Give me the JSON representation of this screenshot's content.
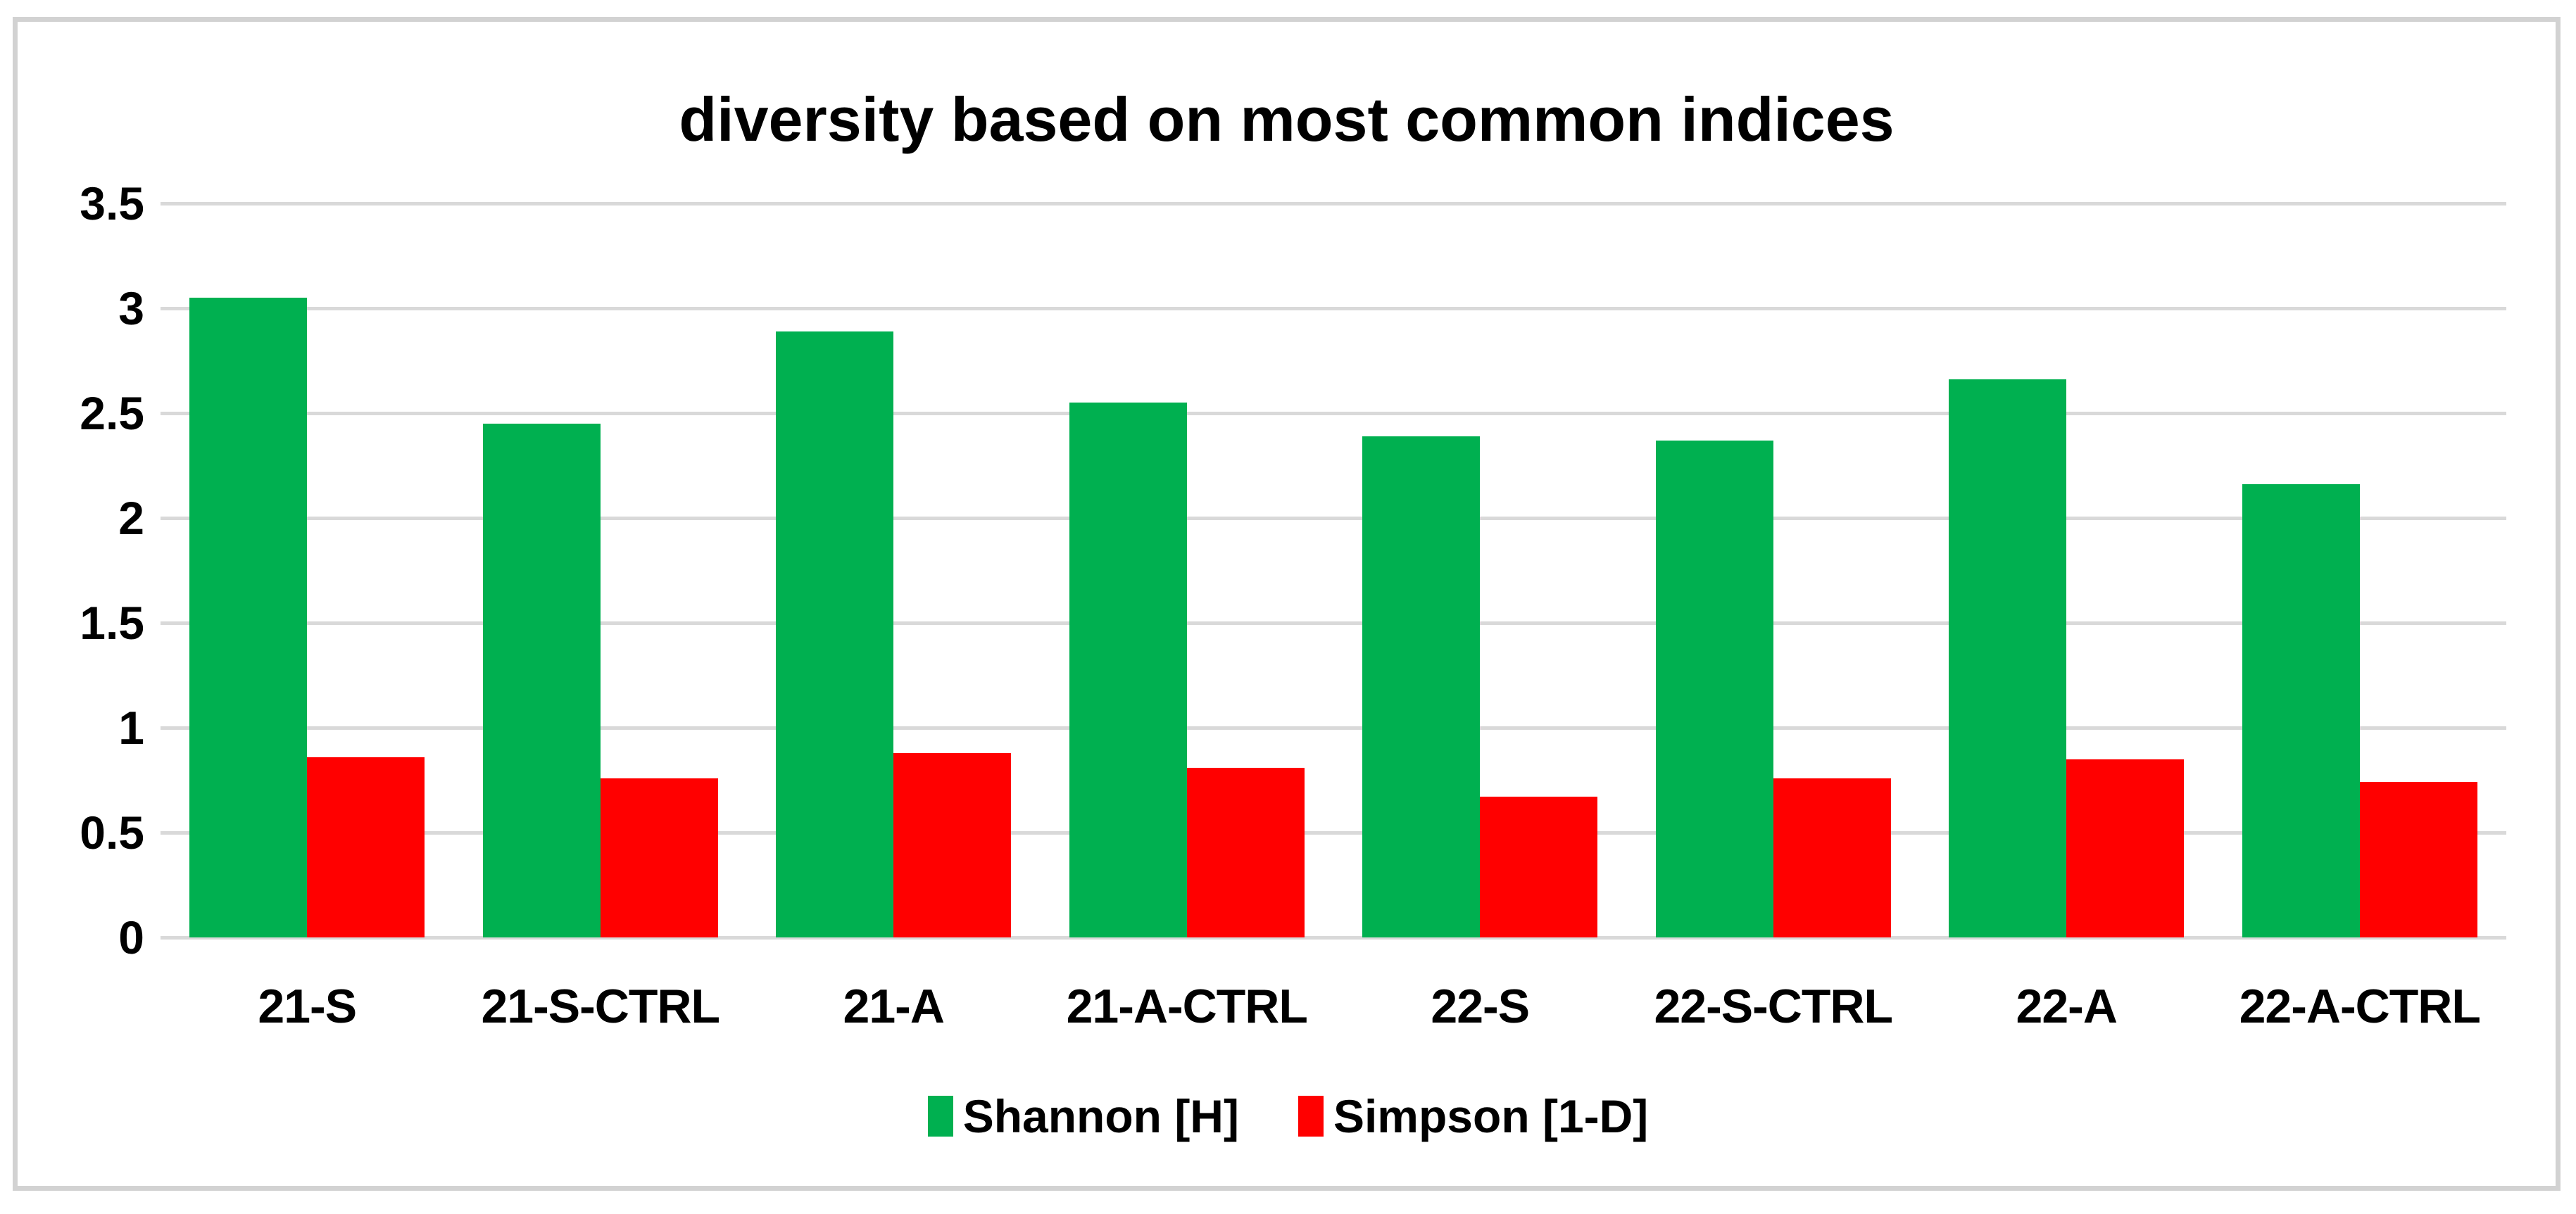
{
  "chart": {
    "title": "diversity based on most common indices"
  },
  "chart_data": {
    "type": "bar",
    "title": "diversity based on most common indices",
    "categories": [
      "21-S",
      "21-S-CTRL",
      "21-A",
      "21-A-CTRL",
      "22-S",
      "22-S-CTRL",
      "22-A",
      "22-A-CTRL"
    ],
    "series": [
      {
        "name": "Shannon [H]",
        "color": "#00B050",
        "values": [
          3.05,
          2.45,
          2.89,
          2.55,
          2.39,
          2.37,
          2.66,
          2.16
        ]
      },
      {
        "name": "Simpson [1-D]",
        "color": "#FF0000",
        "values": [
          0.86,
          0.76,
          0.88,
          0.81,
          0.67,
          0.76,
          0.85,
          0.74
        ]
      }
    ],
    "xlabel": "",
    "ylabel": "",
    "ylim": [
      0,
      3.5
    ],
    "yticks": [
      0,
      0.5,
      1,
      1.5,
      2,
      2.5,
      3,
      3.5
    ],
    "ytick_labels": [
      "0",
      "0.5",
      "1",
      "1.5",
      "2",
      "2.5",
      "3",
      "3.5"
    ],
    "grid": "horizontal",
    "gridline_color": "#d9d9d9",
    "legend_position": "bottom"
  },
  "legend": {
    "items": [
      {
        "label": "Shannon [H]",
        "color": "#00B050"
      },
      {
        "label": "Simpson [1-D]",
        "color": "#FF0000"
      }
    ]
  },
  "colors": {
    "background": "#ffffff",
    "frame_border": "#d2d2d2",
    "gridline": "#d9d9d9",
    "text": "#000000",
    "shannon_green": "#00B050",
    "simpson_red": "#FF0000"
  }
}
